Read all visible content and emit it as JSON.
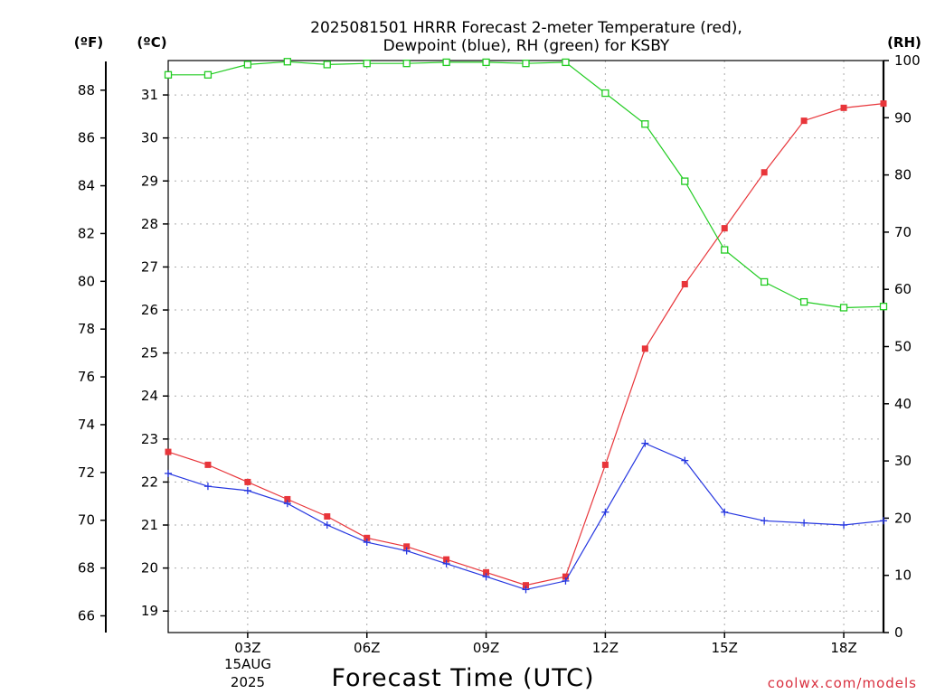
{
  "chart_data": {
    "type": "line",
    "title_line1": "2025081501 HRRR Forecast 2-meter Temperature (red),",
    "title_line2": "Dewpoint (blue), RH (green) for KSBY",
    "xlabel": "Forecast Time (UTC)",
    "x_tick_labels": [
      "03Z",
      "06Z",
      "09Z",
      "12Z",
      "15Z",
      "18Z"
    ],
    "x_date_labels": [
      "15AUG",
      "2025"
    ],
    "x_hours": [
      "01Z",
      "02Z",
      "03Z",
      "04Z",
      "05Z",
      "06Z",
      "07Z",
      "08Z",
      "09Z",
      "10Z",
      "11Z",
      "12Z",
      "13Z",
      "14Z",
      "15Z",
      "16Z",
      "17Z",
      "18Z",
      "19Z"
    ],
    "xlim_hours": [
      1,
      19
    ],
    "left_axis_f": {
      "unit_label": "(ºF)",
      "ticks": [
        66,
        68,
        70,
        72,
        74,
        76,
        78,
        80,
        82,
        84,
        86,
        88
      ]
    },
    "left_axis_c": {
      "unit_label": "(ºC)",
      "ylim": [
        18.5,
        31.8
      ],
      "ticks": [
        19,
        20,
        21,
        22,
        23,
        24,
        25,
        26,
        27,
        28,
        29,
        30,
        31
      ]
    },
    "right_axis_rh": {
      "unit_label": "(RH)",
      "ylim": [
        0,
        100
      ],
      "ticks": [
        0,
        10,
        20,
        30,
        40,
        50,
        60,
        70,
        80,
        90,
        100
      ]
    },
    "series": [
      {
        "legend": "Temperature (red)",
        "color": "#e8353a",
        "axis": "celsius",
        "marker": "filled-square",
        "values": [
          22.7,
          22.4,
          22.0,
          21.6,
          21.2,
          20.7,
          20.5,
          20.2,
          19.9,
          19.6,
          19.8,
          22.4,
          25.1,
          26.6,
          27.9,
          29.2,
          30.4,
          30.7,
          30.8
        ]
      },
      {
        "legend": "Dewpoint (blue)",
        "color": "#2536e0",
        "axis": "celsius",
        "marker": "plus",
        "values": [
          22.2,
          21.9,
          21.8,
          21.5,
          21.0,
          20.6,
          20.4,
          20.1,
          19.8,
          19.5,
          19.7,
          21.3,
          22.9,
          22.5,
          21.3,
          21.1,
          21.05,
          21.0,
          21.1
        ]
      },
      {
        "legend": "RH (green)",
        "color": "#22cc22",
        "axis": "rh",
        "marker": "open-square",
        "values": [
          97.5,
          97.5,
          99.3,
          99.8,
          99.3,
          99.5,
          99.5,
          99.7,
          99.7,
          99.5,
          99.7,
          94.3,
          88.9,
          78.9,
          66.9,
          61.3,
          57.8,
          56.8,
          57.0
        ]
      }
    ],
    "grid": true
  },
  "credit": "coolwx.com/models"
}
